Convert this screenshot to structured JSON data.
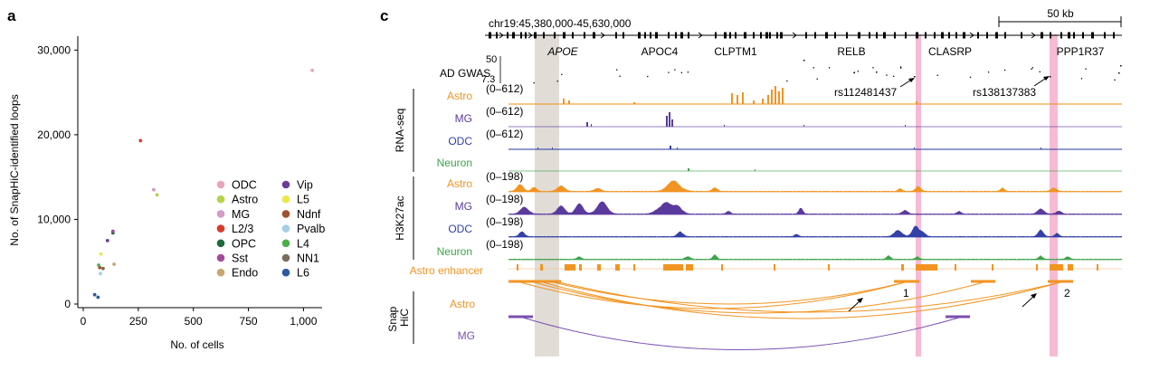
{
  "panel_a": {
    "label": "a",
    "chart_data": {
      "type": "scatter",
      "xlabel": "No. of cells",
      "ylabel": "No. of SnapHiC-identified loops",
      "xlim": [
        0,
        1060
      ],
      "ylim": [
        0,
        31000
      ],
      "x_ticks": [
        0,
        250,
        500,
        750,
        1000
      ],
      "x_tick_labels": [
        "0",
        "250",
        "500",
        "750",
        "1,000"
      ],
      "y_ticks": [
        0,
        10000,
        20000,
        30000
      ],
      "y_tick_labels": [
        "0",
        "10,000",
        "20,000",
        "30,000"
      ],
      "grid": false,
      "legend_position": "right",
      "series": [
        {
          "name": "ODC",
          "color": "#e8a5b8",
          "x": [
            1040
          ],
          "y": [
            27600
          ]
        },
        {
          "name": "Astro",
          "color": "#b5d34a",
          "x": [
            335
          ],
          "y": [
            12900
          ]
        },
        {
          "name": "MG",
          "color": "#d59ac6",
          "x": [
            320
          ],
          "y": [
            13500
          ]
        },
        {
          "name": "L2/3",
          "color": "#d93b2b",
          "x": [
            260
          ],
          "y": [
            19300
          ]
        },
        {
          "name": "OPC",
          "color": "#1f6b3a",
          "x": [
            135
          ],
          "y": [
            8400
          ]
        },
        {
          "name": "Sst",
          "color": "#a24b9e",
          "x": [
            135
          ],
          "y": [
            8600
          ]
        },
        {
          "name": "Endo",
          "color": "#c8a770",
          "x": [
            140
          ],
          "y": [
            4700
          ]
        },
        {
          "name": "Vip",
          "color": "#6a3d9a",
          "x": [
            110
          ],
          "y": [
            7500
          ]
        },
        {
          "name": "L5",
          "color": "#e9e94a",
          "x": [
            80
          ],
          "y": [
            5900
          ]
        },
        {
          "name": "Ndnf",
          "color": "#a0522d",
          "x": [
            75
          ],
          "y": [
            4300
          ]
        },
        {
          "name": "Pvalb",
          "color": "#a6cee3",
          "x": [
            78
          ],
          "y": [
            3600
          ]
        },
        {
          "name": "L4",
          "color": "#4daf4a",
          "x": [
            70
          ],
          "y": [
            4600
          ]
        },
        {
          "name": "NN1",
          "color": "#7a6e59",
          "x": [
            90
          ],
          "y": [
            4200
          ]
        },
        {
          "name": "L6",
          "color": "#2c5aa0",
          "x": [
            52
          ],
          "y": [
            1100
          ]
        }
      ],
      "extra_points": [
        {
          "color": "#2c5aa0",
          "x": [
            67
          ],
          "y": [
            800
          ]
        }
      ]
    }
  },
  "panel_c": {
    "label": "c",
    "region": "chr19:45,380,000-45,630,000",
    "scale_bar_label": "50 kb",
    "genes": [
      {
        "name": "APOE",
        "italic": true
      },
      {
        "name": "APOC4",
        "italic": false
      },
      {
        "name": "CLPTM1",
        "italic": false
      },
      {
        "name": "RELB",
        "italic": false
      },
      {
        "name": "CLASRP",
        "italic": false
      },
      {
        "name": "PPP1R37",
        "italic": false
      }
    ],
    "gwas": {
      "label": "AD GWAS",
      "top_value": "50",
      "threshold_value": "7.3"
    },
    "snps": [
      "rs112481437",
      "rs138137383"
    ],
    "groups": {
      "rnaseq": "RNA-seq",
      "h3k27ac": "H3K27ac",
      "snaphic": "Snap HiC"
    },
    "rnaseq_tracks": [
      {
        "name": "Astro",
        "range": "(0–612)",
        "color": "#f29422"
      },
      {
        "name": "MG",
        "range": "(0–612)",
        "color": "#5b3a9e"
      },
      {
        "name": "ODC",
        "range": "(0–612)",
        "color": "#3240a8"
      },
      {
        "name": "Neuron",
        "range": "",
        "color": "#3ea34a"
      }
    ],
    "h3k27ac_tracks": [
      {
        "name": "Astro",
        "range": "(0–198)",
        "color": "#f29422"
      },
      {
        "name": "MG",
        "range": "(0–198)",
        "color": "#5b3a9e"
      },
      {
        "name": "ODC",
        "range": "(0–198)",
        "color": "#3240a8"
      },
      {
        "name": "Neuron",
        "range": "(0–198)",
        "color": "#3ea34a"
      }
    ],
    "enhancer_label": "Astro enhancer",
    "enhancer_color": "#f29422",
    "hic_tracks": [
      {
        "name": "Astro",
        "color": "#f29422"
      },
      {
        "name": "MG",
        "color": "#7a50b0"
      }
    ],
    "loop_labels": [
      "1",
      "2"
    ]
  }
}
